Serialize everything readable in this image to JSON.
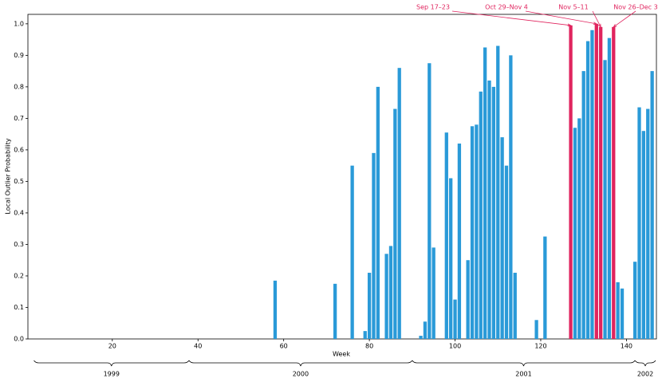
{
  "chart_data": {
    "type": "bar",
    "x_label": "Week",
    "y_label": "Local Outlier Probability",
    "color": "#2a9ad8",
    "highlight_color": "#e0245e",
    "x": [
      58,
      72,
      76,
      79,
      80,
      81,
      82,
      84,
      85,
      86,
      87,
      92,
      93,
      94,
      95,
      98,
      99,
      100,
      101,
      103,
      104,
      105,
      106,
      107,
      108,
      109,
      110,
      111,
      112,
      113,
      114,
      119,
      121,
      127,
      128,
      129,
      130,
      131,
      132,
      133,
      134,
      135,
      136,
      137,
      138,
      139,
      142,
      143,
      144,
      145,
      146
    ],
    "values": [
      0.185,
      0.175,
      0.55,
      0.025,
      0.21,
      0.59,
      0.8,
      0.27,
      0.295,
      0.73,
      0.86,
      0.01,
      0.055,
      0.875,
      0.29,
      0.655,
      0.51,
      0.125,
      0.62,
      0.25,
      0.675,
      0.68,
      0.785,
      0.925,
      0.82,
      0.8,
      0.93,
      0.64,
      0.55,
      0.9,
      0.21,
      0.06,
      0.325,
      0.995,
      0.67,
      0.7,
      0.85,
      0.945,
      0.98,
      1.0,
      0.99,
      0.885,
      0.955,
      0.99,
      0.18,
      0.16,
      0.245,
      0.735,
      0.66,
      0.73,
      0.85
    ],
    "annotations": [
      {
        "text": "Sep 17–23",
        "x": 127
      },
      {
        "text": "Oct 29–Nov 4",
        "x": 133
      },
      {
        "text": "Nov 5–11",
        "x": 134
      },
      {
        "text": "Nov 26–Dec 3",
        "x": 137
      }
    ],
    "year_spans": [
      {
        "label": "1999",
        "start": 1.7,
        "end": 37.9
      },
      {
        "label": "2000",
        "start": 37.9,
        "end": 90
      },
      {
        "label": "2001",
        "start": 90,
        "end": 142
      },
      {
        "label": "2002",
        "start": 142,
        "end": 146.8
      }
    ],
    "xlim": [
      0.3,
      147
    ],
    "ylim": [
      0,
      1.03
    ],
    "xticks": [
      20,
      40,
      60,
      80,
      100,
      120,
      140
    ],
    "yticks": [
      {
        "value": 0,
        "label": "0.0"
      },
      0.1,
      0.2,
      0.3,
      0.4,
      0.5,
      0.6,
      0.7,
      0.8,
      0.9,
      {
        "value": 1,
        "label": "1.0"
      }
    ]
  }
}
